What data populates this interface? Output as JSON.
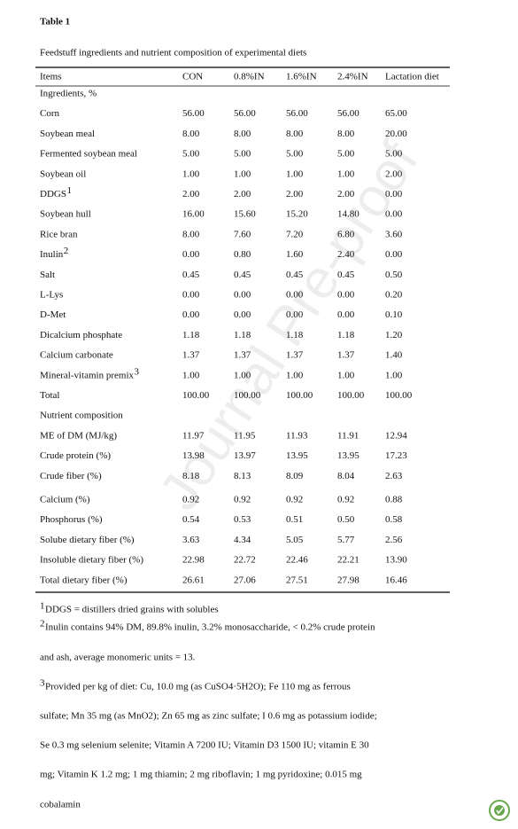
{
  "title": "Table 1",
  "caption": "Feedstuff ingredients and nutrient composition of experimental diets",
  "watermark": "Journal Pre-proof",
  "table": {
    "header": [
      "Items",
      "CON",
      "0.8%IN",
      "1.6%IN",
      "2.4%IN",
      "Lactation diet"
    ],
    "rows": [
      {
        "label": "Ingredients, %"
      },
      {
        "label": "Corn",
        "values": [
          "56.00",
          "56.00",
          "56.00",
          "56.00",
          "65.00"
        ]
      },
      {
        "label": "Soybean meal",
        "values": [
          "8.00",
          "8.00",
          "8.00",
          "8.00",
          "20.00"
        ]
      },
      {
        "label": "Fermented soybean meal",
        "values": [
          "5.00",
          "5.00",
          "5.00",
          "5.00",
          "5.00"
        ]
      },
      {
        "label": "Soybean oil",
        "values": [
          "1.00",
          "1.00",
          "1.00",
          "1.00",
          "2.00"
        ]
      },
      {
        "label": "DDGS",
        "note": "1",
        "values": [
          "2.00",
          "2.00",
          "2.00",
          "2.00",
          "0.00"
        ]
      },
      {
        "label": "Soybean hull",
        "values": [
          "16.00",
          "15.60",
          "15.20",
          "14.80",
          "0.00"
        ]
      },
      {
        "label": "Rice bran",
        "values": [
          "8.00",
          "7.60",
          "7.20",
          "6.80",
          "3.60"
        ]
      },
      {
        "label": "Inulin",
        "note": "2",
        "values": [
          "0.00",
          "0.80",
          "1.60",
          "2.40",
          "0.00"
        ]
      },
      {
        "label": "Salt",
        "values": [
          "0.45",
          "0.45",
          "0.45",
          "0.45",
          "0.50"
        ]
      },
      {
        "label": "L-Lys",
        "values": [
          "0.00",
          "0.00",
          "0.00",
          "0.00",
          "0.20"
        ]
      },
      {
        "label": "D-Met",
        "values": [
          "0.00",
          "0.00",
          "0.00",
          "0.00",
          "0.10"
        ]
      },
      {
        "label": "Dicalcium phosphate",
        "values": [
          "1.18",
          "1.18",
          "1.18",
          "1.18",
          "1.20"
        ]
      },
      {
        "label": "Calcium carbonate",
        "values": [
          "1.37",
          "1.37",
          "1.37",
          "1.37",
          "1.40"
        ]
      },
      {
        "label": "Mineral-vitamin premix",
        "note": "3",
        "values": [
          "1.00",
          "1.00",
          "1.00",
          "1.00",
          "1.00"
        ]
      },
      {
        "label": "Total",
        "values": [
          "100.00",
          "100.00",
          "100.00",
          "100.00",
          "100.00"
        ]
      },
      {
        "label": "Nutrient composition"
      },
      {
        "label": "ME of DM (MJ/kg)",
        "values": [
          "11.97",
          "11.95",
          "11.93",
          "11.91",
          "12.94"
        ]
      },
      {
        "label": "Crude protein (%)",
        "values": [
          "13.98",
          "13.97",
          "13.95",
          "13.95",
          "17.23"
        ]
      },
      {
        "label": "Crude fiber (%)",
        "values": [
          "8.18",
          "8.13",
          "8.09",
          "8.04",
          "2.63"
        ]
      },
      {
        "label": "Calcium (%)",
        "values": [
          "0.92",
          "0.92",
          "0.92",
          "0.92",
          "0.88"
        ]
      },
      {
        "label": "Phosphorus (%)",
        "values": [
          "0.54",
          "0.53",
          "0.51",
          "0.50",
          "0.58"
        ]
      },
      {
        "label": "Solube dietary fiber (%)",
        "values": [
          "3.63",
          "4.34",
          "5.05",
          "5.77",
          "2.56"
        ]
      },
      {
        "label": "Insoluble dietary fiber (%)",
        "values": [
          "22.98",
          "22.72",
          "22.46",
          "22.21",
          "13.90"
        ]
      },
      {
        "label": "Total dietary fiber (%)",
        "values": [
          "26.61",
          "27.06",
          "27.51",
          "27.98",
          "16.46"
        ]
      }
    ]
  },
  "footnotes": [
    {
      "mark": "1",
      "lines": [
        "DDGS = distillers dried grains with solubles"
      ]
    },
    {
      "mark": "2",
      "lines": [
        "Inulin contains 94% DM, 89.8% inulin, 3.2% monosaccharide, < 0.2% crude protein",
        "and ash, average monomeric units = 13."
      ]
    },
    {
      "mark": "3",
      "lines": [
        "Provided per kg of diet: Cu, 10.0 mg (as CuSO4·5H2O); Fe 110 mg as ferrous",
        "sulfate; Mn 35 mg (as MnO2); Zn 65 mg as zinc sulfate; I 0.6 mg as potassium iodide;",
        "Se 0.3 mg selenium selenite; Vitamin A 7200 IU; Vitamin D3 1500 IU; vitamin E 30",
        "mg; Vitamin K 1.2 mg; 1 mg thiamin; 2 mg riboflavin; 1 mg pyridoxine; 0.015 mg",
        "cobalamin"
      ]
    }
  ]
}
